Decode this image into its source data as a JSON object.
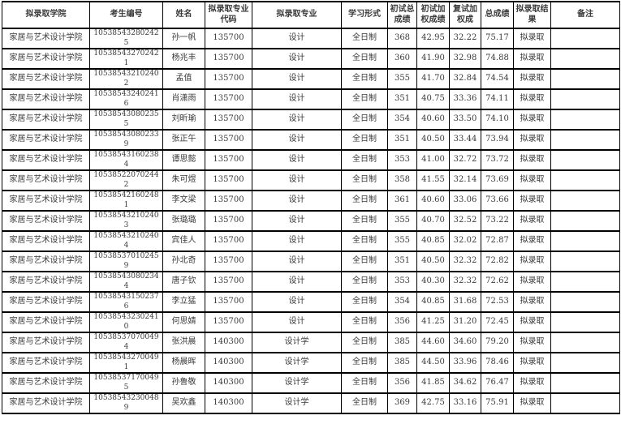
{
  "table": {
    "columns": [
      {
        "key": "college",
        "label": "拟录取学院"
      },
      {
        "key": "candidate_id",
        "label": "考生编号"
      },
      {
        "key": "name",
        "label": "姓名"
      },
      {
        "key": "major_code",
        "label": "拟录取专业代码"
      },
      {
        "key": "major",
        "label": "拟录取专业"
      },
      {
        "key": "study_form",
        "label": "学习形式"
      },
      {
        "key": "initial_total",
        "label": "初试总成绩"
      },
      {
        "key": "initial_weighted",
        "label": "初试加权成绩"
      },
      {
        "key": "retest_weighted",
        "label": "复试加权成"
      },
      {
        "key": "total_score",
        "label": "总成绩"
      },
      {
        "key": "result",
        "label": "拟录取结果"
      },
      {
        "key": "remark",
        "label": "备注"
      }
    ],
    "rows": [
      {
        "college": "家居与艺术设计学院",
        "candidate_id": "105385432802425",
        "name": "孙一帆",
        "major_code": "135700",
        "major": "设计",
        "study_form": "全日制",
        "initial_total": "368",
        "initial_weighted": "42.95",
        "retest_weighted": "32.22",
        "total_score": "75.17",
        "result": "拟录取",
        "remark": ""
      },
      {
        "college": "家居与艺术设计学院",
        "candidate_id": "105385432702421",
        "name": "杨兆丰",
        "major_code": "135700",
        "major": "设计",
        "study_form": "全日制",
        "initial_total": "360",
        "initial_weighted": "41.90",
        "retest_weighted": "32.98",
        "total_score": "74.88",
        "result": "拟录取",
        "remark": ""
      },
      {
        "college": "家居与艺术设计学院",
        "candidate_id": "105385432102402",
        "name": "孟值",
        "major_code": "135700",
        "major": "设计",
        "study_form": "全日制",
        "initial_total": "355",
        "initial_weighted": "41.70",
        "retest_weighted": "32.84",
        "total_score": "74.54",
        "result": "拟录取",
        "remark": ""
      },
      {
        "college": "家居与艺术设计学院",
        "candidate_id": "105385432402416",
        "name": "肖潇雨",
        "major_code": "135700",
        "major": "设计",
        "study_form": "全日制",
        "initial_total": "351",
        "initial_weighted": "40.75",
        "retest_weighted": "33.36",
        "total_score": "74.11",
        "result": "拟录取",
        "remark": ""
      },
      {
        "college": "家居与艺术设计学院",
        "candidate_id": "105385430802355",
        "name": "刘昕瑜",
        "major_code": "135700",
        "major": "设计",
        "study_form": "全日制",
        "initial_total": "354",
        "initial_weighted": "40.60",
        "retest_weighted": "33.50",
        "total_score": "74.10",
        "result": "拟录取",
        "remark": ""
      },
      {
        "college": "家居与艺术设计学院",
        "candidate_id": "105385430802339",
        "name": "张正午",
        "major_code": "135700",
        "major": "设计",
        "study_form": "全日制",
        "initial_total": "351",
        "initial_weighted": "40.50",
        "retest_weighted": "33.44",
        "total_score": "73.94",
        "result": "拟录取",
        "remark": ""
      },
      {
        "college": "家居与艺术设计学院",
        "candidate_id": "105385431602384",
        "name": "谭思懿",
        "major_code": "135700",
        "major": "设计",
        "study_form": "全日制",
        "initial_total": "353",
        "initial_weighted": "41.00",
        "retest_weighted": "32.72",
        "total_score": "73.72",
        "result": "拟录取",
        "remark": ""
      },
      {
        "college": "家居与艺术设计学院",
        "candidate_id": "105385220702442",
        "name": "朱可煜",
        "major_code": "135700",
        "major": "设计",
        "study_form": "全日制",
        "initial_total": "358",
        "initial_weighted": "41.55",
        "retest_weighted": "32.14",
        "total_score": "73.69",
        "result": "拟录取",
        "remark": ""
      },
      {
        "college": "家居与艺术设计学院",
        "candidate_id": "105385421602481",
        "name": "李文梁",
        "major_code": "135700",
        "major": "设计",
        "study_form": "全日制",
        "initial_total": "361",
        "initial_weighted": "40.60",
        "retest_weighted": "33.06",
        "total_score": "73.66",
        "result": "拟录取",
        "remark": ""
      },
      {
        "college": "家居与艺术设计学院",
        "candidate_id": "105385432102403",
        "name": "张璐璐",
        "major_code": "135700",
        "major": "设计",
        "study_form": "全日制",
        "initial_total": "355",
        "initial_weighted": "40.70",
        "retest_weighted": "32.52",
        "total_score": "73.22",
        "result": "拟录取",
        "remark": ""
      },
      {
        "college": "家居与艺术设计学院",
        "candidate_id": "105385432102404",
        "name": "宾佳人",
        "major_code": "135700",
        "major": "设计",
        "study_form": "全日制",
        "initial_total": "355",
        "initial_weighted": "40.85",
        "retest_weighted": "32.02",
        "total_score": "72.87",
        "result": "拟录取",
        "remark": ""
      },
      {
        "college": "家居与艺术设计学院",
        "candidate_id": "105385370102459",
        "name": "孙北奇",
        "major_code": "135700",
        "major": "设计",
        "study_form": "全日制",
        "initial_total": "351",
        "initial_weighted": "40.50",
        "retest_weighted": "32.32",
        "total_score": "72.82",
        "result": "拟录取",
        "remark": ""
      },
      {
        "college": "家居与艺术设计学院",
        "candidate_id": "105385430802344",
        "name": "唐子钦",
        "major_code": "135700",
        "major": "设计",
        "study_form": "全日制",
        "initial_total": "353",
        "initial_weighted": "40.30",
        "retest_weighted": "32.32",
        "total_score": "72.62",
        "result": "拟录取",
        "remark": ""
      },
      {
        "college": "家居与艺术设计学院",
        "candidate_id": "105385431502376",
        "name": "李立猛",
        "major_code": "135700",
        "major": "设计",
        "study_form": "全日制",
        "initial_total": "354",
        "initial_weighted": "40.85",
        "retest_weighted": "31.68",
        "total_score": "72.53",
        "result": "拟录取",
        "remark": ""
      },
      {
        "college": "家居与艺术设计学院",
        "candidate_id": "105385432302410",
        "name": "何思婧",
        "major_code": "135700",
        "major": "设计",
        "study_form": "全日制",
        "initial_total": "356",
        "initial_weighted": "41.25",
        "retest_weighted": "31.20",
        "total_score": "72.45",
        "result": "拟录取",
        "remark": ""
      },
      {
        "college": "家居与艺术设计学院",
        "candidate_id": "105385370700494",
        "name": "张洪晨",
        "major_code": "140300",
        "major": "设计学",
        "study_form": "全日制",
        "initial_total": "385",
        "initial_weighted": "44.60",
        "retest_weighted": "34.60",
        "total_score": "79.20",
        "result": "拟录取",
        "remark": ""
      },
      {
        "college": "家居与艺术设计学院",
        "candidate_id": "105385432700491",
        "name": "杨晨晖",
        "major_code": "140300",
        "major": "设计学",
        "study_form": "全日制",
        "initial_total": "385",
        "initial_weighted": "44.50",
        "retest_weighted": "33.96",
        "total_score": "78.46",
        "result": "拟录取",
        "remark": ""
      },
      {
        "college": "家居与艺术设计学院",
        "candidate_id": "105385371700495",
        "name": "孙鲁敬",
        "major_code": "140300",
        "major": "设计学",
        "study_form": "全日制",
        "initial_total": "356",
        "initial_weighted": "41.85",
        "retest_weighted": "34.62",
        "total_score": "76.47",
        "result": "拟录取",
        "remark": ""
      },
      {
        "college": "家居与艺术设计学院",
        "candidate_id": "105385432300489",
        "name": "吴欢鑫",
        "major_code": "140300",
        "major": "设计学",
        "study_form": "全日制",
        "initial_total": "369",
        "initial_weighted": "42.75",
        "retest_weighted": "33.16",
        "total_score": "75.91",
        "result": "拟录取",
        "remark": ""
      }
    ]
  }
}
